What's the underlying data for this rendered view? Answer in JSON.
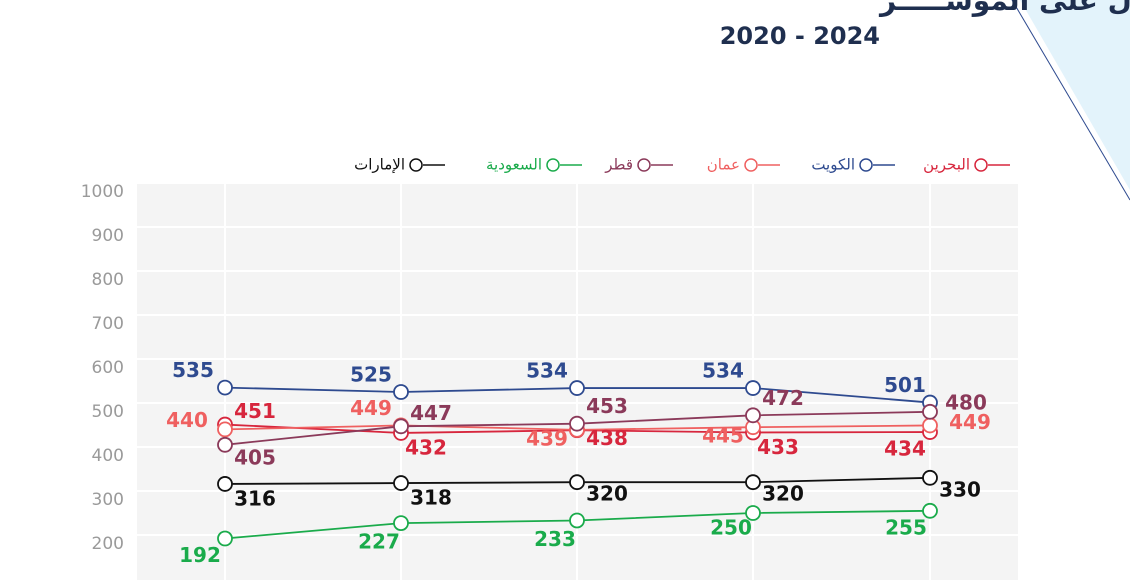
{
  "chart_data": {
    "type": "line",
    "title": "أداء الدول على المؤشـــــر",
    "subtitle": "2020 - 2024",
    "categories": [
      null,
      null,
      null,
      null,
      null
    ],
    "ylim": [
      100,
      1000
    ],
    "yticks": [
      200,
      300,
      400,
      500,
      600,
      700,
      800,
      900,
      1000
    ],
    "grid": true,
    "legend": "top",
    "series": [
      {
        "name": "البحرين",
        "color": "#d7263d",
        "values": [
          451,
          432,
          438,
          433,
          434
        ]
      },
      {
        "name": "الكويت",
        "color": "#2e4a8f",
        "values": [
          535,
          525,
          534,
          534,
          501
        ]
      },
      {
        "name": "عمان",
        "color": "#ef6060",
        "values": [
          440,
          449,
          439,
          445,
          449
        ]
      },
      {
        "name": "قطر",
        "color": "#8b3a5a",
        "values": [
          405,
          447,
          453,
          472,
          480
        ]
      },
      {
        "name": "السعودية",
        "color": "#1aab4b",
        "values": [
          192,
          227,
          233,
          250,
          255
        ]
      },
      {
        "name": "الإمارات",
        "color": "#111111",
        "values": [
          316,
          318,
          320,
          320,
          330
        ]
      }
    ]
  }
}
